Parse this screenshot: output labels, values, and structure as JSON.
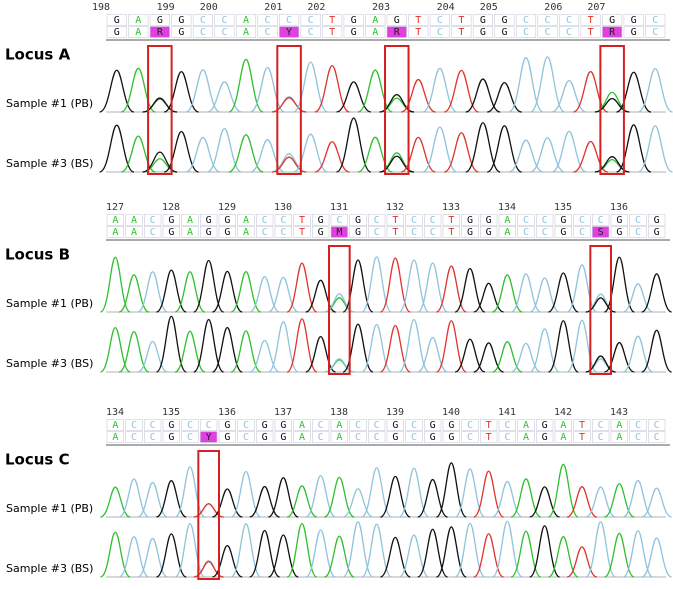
{
  "loci": [
    {
      "title": "Locus A",
      "positions": [
        "198",
        "199",
        "200",
        "201",
        "202",
        "203",
        "204",
        "205",
        "206",
        "207"
      ],
      "reference": [
        "G",
        "A",
        "G",
        "G",
        "C",
        "C",
        "A",
        "C",
        "C",
        "C",
        "T",
        "G",
        "A",
        "G",
        "T",
        "C",
        "T",
        "G",
        "G",
        "C",
        "C",
        "C",
        "T",
        "G",
        "G",
        "C"
      ],
      "sample": [
        "G",
        "A",
        "R",
        "G",
        "C",
        "C",
        "A",
        "C",
        "Y",
        "C",
        "T",
        "G",
        "A",
        "R",
        "T",
        "C",
        "T",
        "G",
        "G",
        "C",
        "C",
        "C",
        "T",
        "R",
        "G",
        "C"
      ],
      "samples": [
        "Sample #1 (PB)",
        "Sample #3 (BS)"
      ]
    },
    {
      "title": "Locus B",
      "positions": [
        "127",
        "128",
        "129",
        "130",
        "131",
        "132",
        "133",
        "134",
        "135",
        "136"
      ],
      "reference": [
        "A",
        "A",
        "C",
        "G",
        "A",
        "G",
        "G",
        "A",
        "C",
        "C",
        "T",
        "G",
        "C",
        "G",
        "C",
        "T",
        "C",
        "C",
        "T",
        "G",
        "G",
        "A",
        "C",
        "C",
        "G",
        "C",
        "C",
        "G",
        "C",
        "G"
      ],
      "sample": [
        "A",
        "A",
        "C",
        "G",
        "A",
        "G",
        "G",
        "A",
        "C",
        "C",
        "T",
        "G",
        "M",
        "G",
        "C",
        "T",
        "C",
        "C",
        "T",
        "G",
        "G",
        "A",
        "C",
        "C",
        "G",
        "C",
        "S",
        "G",
        "C",
        "G"
      ],
      "samples": [
        "Sample #1 (PB)",
        "Sample #3 (BS)"
      ]
    },
    {
      "title": "Locus C",
      "positions": [
        "134",
        "135",
        "136",
        "137",
        "138",
        "139",
        "140",
        "141",
        "142",
        "143"
      ],
      "reference": [
        "A",
        "C",
        "C",
        "G",
        "C",
        "C",
        "G",
        "C",
        "G",
        "G",
        "A",
        "C",
        "A",
        "C",
        "C",
        "G",
        "C",
        "G",
        "G",
        "C",
        "T",
        "C",
        "A",
        "G",
        "A",
        "T",
        "C",
        "A",
        "C",
        "C"
      ],
      "sample": [
        "A",
        "C",
        "C",
        "G",
        "C",
        "Y",
        "G",
        "C",
        "G",
        "G",
        "A",
        "C",
        "A",
        "C",
        "C",
        "G",
        "C",
        "G",
        "G",
        "C",
        "T",
        "C",
        "A",
        "G",
        "A",
        "T",
        "C",
        "A",
        "C",
        "C"
      ],
      "samples": [
        "Sample #1 (PB)",
        "Sample #3 (BS)"
      ]
    }
  ]
}
